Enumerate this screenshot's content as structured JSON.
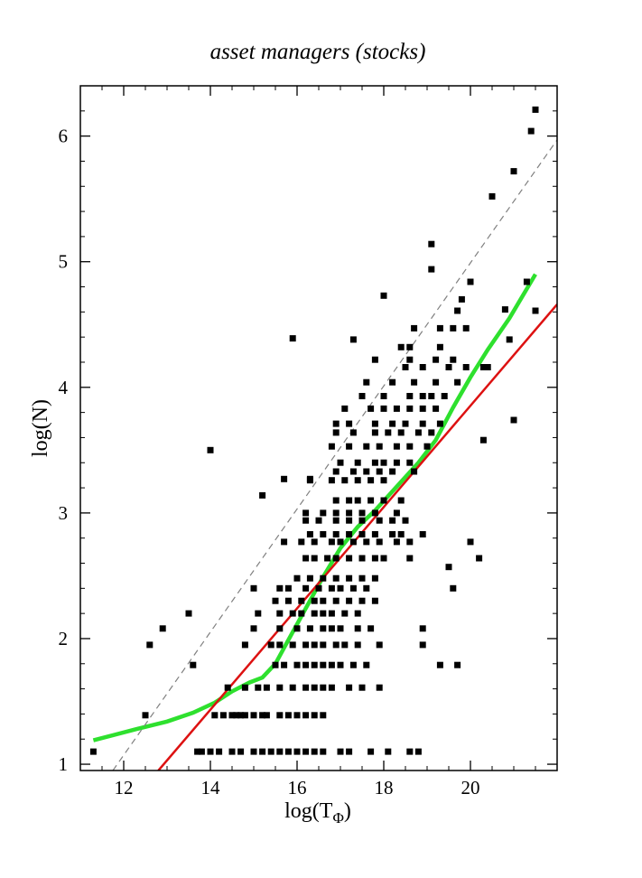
{
  "chart_data": {
    "type": "scatter",
    "title": "asset managers (stocks)",
    "xlabel": "log(T",
    "xlabel_sub": "Φ",
    "xlabel_close": ")",
    "ylabel": "log(N)",
    "xlim": [
      11.0,
      22.0
    ],
    "ylim": [
      0.95,
      6.4
    ],
    "xticks": [
      12,
      14,
      16,
      18,
      20
    ],
    "yticks": [
      1,
      2,
      3,
      4,
      5,
      6
    ],
    "xtick_labels": [
      "12",
      "14",
      "16",
      "18",
      "20"
    ],
    "ytick_labels": [
      "1",
      "2",
      "3",
      "4",
      "5",
      "6"
    ],
    "grid": false,
    "series": [
      {
        "kind": "scatter",
        "color": "#000000",
        "points": [
          [
            11.3,
            1.1
          ],
          [
            12.5,
            1.39
          ],
          [
            12.6,
            1.95
          ],
          [
            12.9,
            2.08
          ],
          [
            13.5,
            2.2
          ],
          [
            13.6,
            1.79
          ],
          [
            14.0,
            3.5
          ],
          [
            13.7,
            1.1
          ],
          [
            13.8,
            1.1
          ],
          [
            14.0,
            1.1
          ],
          [
            14.2,
            1.1
          ],
          [
            14.5,
            1.1
          ],
          [
            14.7,
            1.1
          ],
          [
            14.1,
            1.39
          ],
          [
            14.3,
            1.39
          ],
          [
            14.5,
            1.39
          ],
          [
            14.6,
            1.39
          ],
          [
            14.7,
            1.39
          ],
          [
            14.8,
            1.39
          ],
          [
            15.0,
            1.39
          ],
          [
            15.2,
            1.39
          ],
          [
            15.3,
            1.39
          ],
          [
            14.4,
            1.61
          ],
          [
            14.8,
            1.61
          ],
          [
            15.1,
            1.61
          ],
          [
            15.3,
            1.61
          ],
          [
            14.8,
            1.95
          ],
          [
            15.0,
            2.08
          ],
          [
            15.1,
            2.2
          ],
          [
            15.0,
            2.4
          ],
          [
            15.2,
            3.14
          ],
          [
            15.0,
            1.1
          ],
          [
            15.2,
            1.1
          ],
          [
            15.4,
            1.1
          ],
          [
            15.6,
            1.1
          ],
          [
            15.8,
            1.1
          ],
          [
            16.0,
            1.1
          ],
          [
            16.2,
            1.1
          ],
          [
            16.4,
            1.1
          ],
          [
            16.6,
            1.1
          ],
          [
            17.0,
            1.1
          ],
          [
            17.2,
            1.1
          ],
          [
            17.7,
            1.1
          ],
          [
            18.1,
            1.1
          ],
          [
            18.6,
            1.1
          ],
          [
            18.8,
            1.1
          ],
          [
            15.6,
            1.39
          ],
          [
            15.8,
            1.39
          ],
          [
            16.0,
            1.39
          ],
          [
            16.2,
            1.39
          ],
          [
            16.4,
            1.39
          ],
          [
            16.6,
            1.39
          ],
          [
            15.6,
            1.61
          ],
          [
            15.9,
            1.61
          ],
          [
            16.2,
            1.61
          ],
          [
            16.4,
            1.61
          ],
          [
            16.6,
            1.61
          ],
          [
            16.8,
            1.61
          ],
          [
            17.2,
            1.61
          ],
          [
            17.5,
            1.61
          ],
          [
            17.9,
            1.61
          ],
          [
            15.5,
            1.79
          ],
          [
            15.7,
            1.79
          ],
          [
            16.0,
            1.79
          ],
          [
            16.2,
            1.79
          ],
          [
            16.4,
            1.79
          ],
          [
            16.6,
            1.79
          ],
          [
            16.8,
            1.79
          ],
          [
            17.0,
            1.79
          ],
          [
            17.3,
            1.79
          ],
          [
            17.6,
            1.79
          ],
          [
            15.4,
            1.95
          ],
          [
            15.6,
            1.95
          ],
          [
            15.9,
            1.95
          ],
          [
            16.2,
            1.95
          ],
          [
            16.4,
            1.95
          ],
          [
            16.6,
            1.95
          ],
          [
            16.9,
            1.95
          ],
          [
            17.1,
            1.95
          ],
          [
            17.4,
            1.95
          ],
          [
            17.9,
            1.95
          ],
          [
            15.6,
            2.08
          ],
          [
            16.0,
            2.08
          ],
          [
            16.3,
            2.08
          ],
          [
            16.6,
            2.08
          ],
          [
            16.8,
            2.08
          ],
          [
            17.0,
            2.08
          ],
          [
            17.4,
            2.08
          ],
          [
            17.7,
            2.08
          ],
          [
            15.6,
            2.2
          ],
          [
            15.9,
            2.2
          ],
          [
            16.1,
            2.2
          ],
          [
            16.4,
            2.2
          ],
          [
            16.6,
            2.2
          ],
          [
            16.8,
            2.2
          ],
          [
            17.1,
            2.2
          ],
          [
            17.4,
            2.2
          ],
          [
            15.5,
            2.3
          ],
          [
            15.8,
            2.3
          ],
          [
            16.1,
            2.3
          ],
          [
            16.4,
            2.3
          ],
          [
            16.6,
            2.3
          ],
          [
            16.9,
            2.3
          ],
          [
            17.2,
            2.3
          ],
          [
            17.5,
            2.3
          ],
          [
            17.8,
            2.3
          ],
          [
            15.6,
            2.4
          ],
          [
            15.8,
            2.4
          ],
          [
            16.2,
            2.4
          ],
          [
            16.5,
            2.4
          ],
          [
            16.8,
            2.4
          ],
          [
            17.0,
            2.4
          ],
          [
            17.3,
            2.4
          ],
          [
            17.6,
            2.4
          ],
          [
            16.0,
            2.48
          ],
          [
            16.3,
            2.48
          ],
          [
            16.6,
            2.48
          ],
          [
            16.9,
            2.48
          ],
          [
            17.2,
            2.48
          ],
          [
            17.5,
            2.48
          ],
          [
            17.8,
            2.48
          ],
          [
            16.2,
            2.64
          ],
          [
            16.4,
            2.64
          ],
          [
            16.7,
            2.64
          ],
          [
            16.9,
            2.64
          ],
          [
            17.2,
            2.64
          ],
          [
            17.5,
            2.64
          ],
          [
            17.8,
            2.64
          ],
          [
            18.0,
            2.64
          ],
          [
            18.6,
            2.64
          ],
          [
            15.7,
            2.77
          ],
          [
            16.1,
            2.77
          ],
          [
            16.4,
            2.77
          ],
          [
            16.8,
            2.77
          ],
          [
            17.0,
            2.77
          ],
          [
            17.3,
            2.77
          ],
          [
            17.6,
            2.77
          ],
          [
            17.9,
            2.77
          ],
          [
            18.3,
            2.77
          ],
          [
            18.6,
            2.77
          ],
          [
            16.3,
            2.83
          ],
          [
            16.6,
            2.83
          ],
          [
            16.9,
            2.83
          ],
          [
            17.2,
            2.83
          ],
          [
            17.5,
            2.83
          ],
          [
            17.8,
            2.83
          ],
          [
            18.2,
            2.83
          ],
          [
            18.4,
            2.83
          ],
          [
            18.9,
            2.83
          ],
          [
            16.2,
            2.94
          ],
          [
            16.5,
            2.94
          ],
          [
            16.9,
            2.94
          ],
          [
            17.2,
            2.94
          ],
          [
            17.5,
            2.94
          ],
          [
            17.9,
            2.94
          ],
          [
            18.2,
            2.94
          ],
          [
            18.5,
            2.94
          ],
          [
            16.2,
            3.0
          ],
          [
            16.6,
            3.0
          ],
          [
            16.9,
            3.0
          ],
          [
            17.2,
            3.0
          ],
          [
            17.5,
            3.0
          ],
          [
            17.8,
            3.0
          ],
          [
            18.3,
            3.0
          ],
          [
            16.9,
            3.1
          ],
          [
            17.2,
            3.1
          ],
          [
            17.4,
            3.1
          ],
          [
            17.7,
            3.1
          ],
          [
            18.0,
            3.1
          ],
          [
            18.4,
            3.1
          ],
          [
            16.3,
            3.26
          ],
          [
            16.8,
            3.26
          ],
          [
            17.1,
            3.26
          ],
          [
            17.4,
            3.26
          ],
          [
            17.7,
            3.26
          ],
          [
            18.0,
            3.26
          ],
          [
            16.9,
            3.33
          ],
          [
            17.3,
            3.33
          ],
          [
            17.6,
            3.33
          ],
          [
            17.9,
            3.33
          ],
          [
            18.2,
            3.33
          ],
          [
            18.7,
            3.33
          ],
          [
            17.0,
            3.4
          ],
          [
            17.4,
            3.4
          ],
          [
            17.8,
            3.4
          ],
          [
            18.0,
            3.4
          ],
          [
            18.3,
            3.4
          ],
          [
            18.6,
            3.4
          ],
          [
            16.8,
            3.53
          ],
          [
            17.2,
            3.53
          ],
          [
            17.6,
            3.53
          ],
          [
            17.9,
            3.53
          ],
          [
            18.3,
            3.53
          ],
          [
            18.6,
            3.53
          ],
          [
            19.0,
            3.53
          ],
          [
            16.9,
            3.64
          ],
          [
            17.3,
            3.64
          ],
          [
            17.8,
            3.64
          ],
          [
            18.1,
            3.64
          ],
          [
            18.4,
            3.64
          ],
          [
            18.8,
            3.64
          ],
          [
            19.1,
            3.64
          ],
          [
            16.9,
            3.71
          ],
          [
            17.2,
            3.71
          ],
          [
            17.8,
            3.71
          ],
          [
            18.2,
            3.71
          ],
          [
            18.5,
            3.71
          ],
          [
            18.9,
            3.71
          ],
          [
            19.3,
            3.71
          ],
          [
            17.1,
            3.83
          ],
          [
            17.7,
            3.83
          ],
          [
            18.0,
            3.83
          ],
          [
            18.3,
            3.83
          ],
          [
            18.6,
            3.83
          ],
          [
            18.9,
            3.83
          ],
          [
            19.2,
            3.83
          ],
          [
            17.5,
            3.93
          ],
          [
            18.0,
            3.93
          ],
          [
            18.6,
            3.93
          ],
          [
            18.9,
            3.93
          ],
          [
            19.1,
            3.93
          ],
          [
            19.4,
            3.93
          ],
          [
            17.6,
            4.04
          ],
          [
            18.2,
            4.04
          ],
          [
            18.7,
            4.04
          ],
          [
            19.2,
            4.04
          ],
          [
            19.7,
            4.04
          ],
          [
            18.5,
            4.16
          ],
          [
            18.9,
            4.16
          ],
          [
            19.5,
            4.16
          ],
          [
            19.9,
            4.16
          ],
          [
            20.3,
            4.16
          ],
          [
            17.8,
            4.22
          ],
          [
            18.6,
            4.22
          ],
          [
            19.2,
            4.22
          ],
          [
            19.6,
            4.22
          ],
          [
            18.4,
            4.32
          ],
          [
            18.6,
            4.32
          ],
          [
            19.3,
            4.32
          ],
          [
            17.3,
            4.38
          ],
          [
            18.7,
            4.47
          ],
          [
            19.3,
            4.47
          ],
          [
            19.6,
            4.47
          ],
          [
            19.9,
            4.47
          ],
          [
            18.0,
            4.73
          ],
          [
            19.1,
            4.94
          ],
          [
            19.1,
            5.14
          ],
          [
            19.7,
            4.61
          ],
          [
            19.8,
            4.7
          ],
          [
            20.0,
            4.84
          ],
          [
            15.9,
            4.39
          ],
          [
            16.3,
            3.27
          ],
          [
            15.7,
            3.27
          ],
          [
            19.5,
            2.57
          ],
          [
            19.6,
            2.4
          ],
          [
            19.7,
            1.79
          ],
          [
            19.3,
            1.79
          ],
          [
            18.9,
            1.95
          ],
          [
            18.9,
            2.08
          ],
          [
            20.0,
            2.77
          ],
          [
            20.2,
            2.64
          ],
          [
            20.3,
            3.58
          ],
          [
            20.4,
            4.16
          ],
          [
            21.0,
            3.74
          ],
          [
            20.9,
            4.38
          ],
          [
            20.8,
            4.62
          ],
          [
            20.5,
            5.52
          ],
          [
            21.0,
            5.72
          ],
          [
            21.4,
            6.04
          ],
          [
            21.5,
            6.21
          ],
          [
            21.3,
            4.84
          ],
          [
            21.5,
            4.61
          ]
        ]
      },
      {
        "kind": "line",
        "name": "",
        "color": "#2ee02e",
        "x": [
          11.3,
          12.3,
          13.0,
          13.6,
          14.1,
          14.5,
          14.9,
          15.2,
          15.5,
          15.8,
          16.2,
          16.6,
          17.0,
          17.4,
          17.8,
          18.3,
          18.8,
          19.2,
          19.6,
          20.0,
          20.4,
          20.9,
          21.5
        ],
        "y": [
          1.19,
          1.28,
          1.34,
          1.41,
          1.49,
          1.58,
          1.65,
          1.69,
          1.8,
          1.99,
          2.24,
          2.49,
          2.72,
          2.89,
          3.02,
          3.21,
          3.4,
          3.58,
          3.84,
          4.08,
          4.3,
          4.55,
          4.9
        ]
      },
      {
        "kind": "line",
        "name": "",
        "color": "#dd1111",
        "x": [
          12.8,
          22.0
        ],
        "y": [
          0.95,
          4.66
        ]
      },
      {
        "kind": "line",
        "name": "",
        "color": "#808080",
        "dashed": true,
        "x": [
          11.75,
          22.0
        ],
        "y": [
          0.95,
          5.97
        ]
      }
    ]
  }
}
